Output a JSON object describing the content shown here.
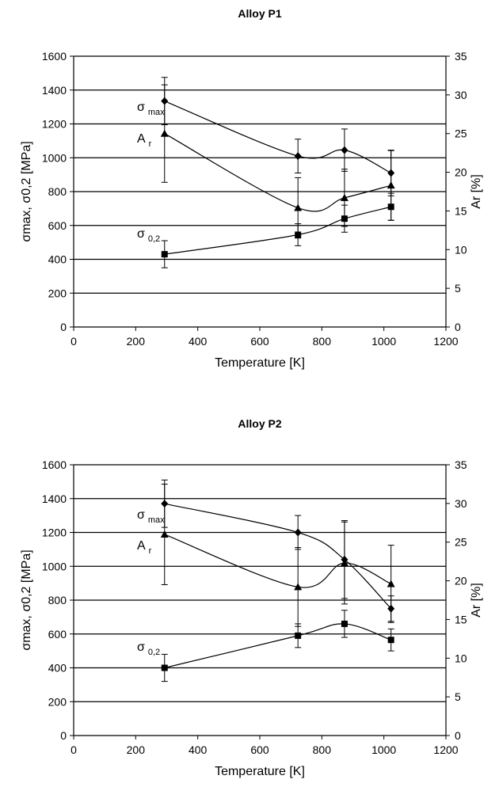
{
  "chart_data": [
    {
      "type": "line",
      "title": "Alloy P1",
      "xlabel": "Temperature [K]",
      "ylabel": "σmax, σ0,2 [MPa]",
      "y2label": "Ar [%]",
      "xlim": [
        0,
        1200
      ],
      "ylim": [
        0,
        1600
      ],
      "y2lim": [
        0,
        35
      ],
      "x_ticks": [
        "0",
        "200",
        "400",
        "600",
        "800",
        "1000",
        "1200"
      ],
      "y_ticks": [
        "0",
        "200",
        "400",
        "600",
        "800",
        "1000",
        "1200",
        "1400",
        "1600"
      ],
      "y2_ticks": [
        "0",
        "5",
        "10",
        "15",
        "20",
        "25",
        "30",
        "35"
      ],
      "grid": true,
      "series": [
        {
          "name": "σ max",
          "label_main": "σ",
          "label_sub": "max",
          "marker": "diamond",
          "axis": "left",
          "x": [
            293,
            723,
            873,
            1023
          ],
          "y": [
            1335,
            1010,
            1045,
            910
          ],
          "err": [
            140,
            100,
            125,
            135
          ]
        },
        {
          "name": "A r",
          "label_main": "A",
          "label_sub": "r",
          "marker": "triangle",
          "axis": "right",
          "x": [
            293,
            723,
            873,
            1023
          ],
          "y": [
            25,
            15.4,
            16.7,
            18.3
          ],
          "err": [
            6.3,
            3.9,
            3.7,
            4.5
          ]
        },
        {
          "name": "σ 0,2",
          "label_main": "σ",
          "label_sub": "0,2",
          "marker": "square",
          "axis": "left",
          "x": [
            293,
            723,
            873,
            1023
          ],
          "y": [
            430,
            545,
            640,
            710
          ],
          "err": [
            80,
            65,
            80,
            80
          ]
        }
      ]
    },
    {
      "type": "line",
      "title": "Alloy P2",
      "xlabel": "Temperature [K]",
      "ylabel": "σmax, σ0,2 [MPa]",
      "y2label": "Ar [%]",
      "xlim": [
        0,
        1200
      ],
      "ylim": [
        0,
        1600
      ],
      "y2lim": [
        0,
        35
      ],
      "x_ticks": [
        "0",
        "200",
        "400",
        "600",
        "800",
        "1000",
        "1200"
      ],
      "y_ticks": [
        "0",
        "200",
        "400",
        "600",
        "800",
        "1000",
        "1200",
        "1400",
        "1600"
      ],
      "y2_ticks": [
        "0",
        "5",
        "10",
        "15",
        "20",
        "25",
        "30",
        "35"
      ],
      "grid": true,
      "series": [
        {
          "name": "σ max",
          "label_main": "σ",
          "label_sub": "max",
          "marker": "diamond",
          "axis": "left",
          "x": [
            293,
            723,
            873,
            1023
          ],
          "y": [
            1370,
            1200,
            1040,
            750
          ],
          "err": [
            140,
            100,
            230,
            75
          ]
        },
        {
          "name": "A r",
          "label_main": "A",
          "label_sub": "r",
          "marker": "triangle",
          "axis": "right",
          "x": [
            293,
            723,
            873,
            1023
          ],
          "y": [
            26,
            19.2,
            22.3,
            19.6
          ],
          "err": [
            6.5,
            5.1,
            5.3,
            5
          ]
        },
        {
          "name": "σ 0,2",
          "label_main": "σ",
          "label_sub": "0,2",
          "marker": "square",
          "axis": "left",
          "x": [
            293,
            723,
            873,
            1023
          ],
          "y": [
            400,
            590,
            660,
            565
          ],
          "err": [
            80,
            70,
            80,
            65
          ]
        }
      ]
    }
  ]
}
